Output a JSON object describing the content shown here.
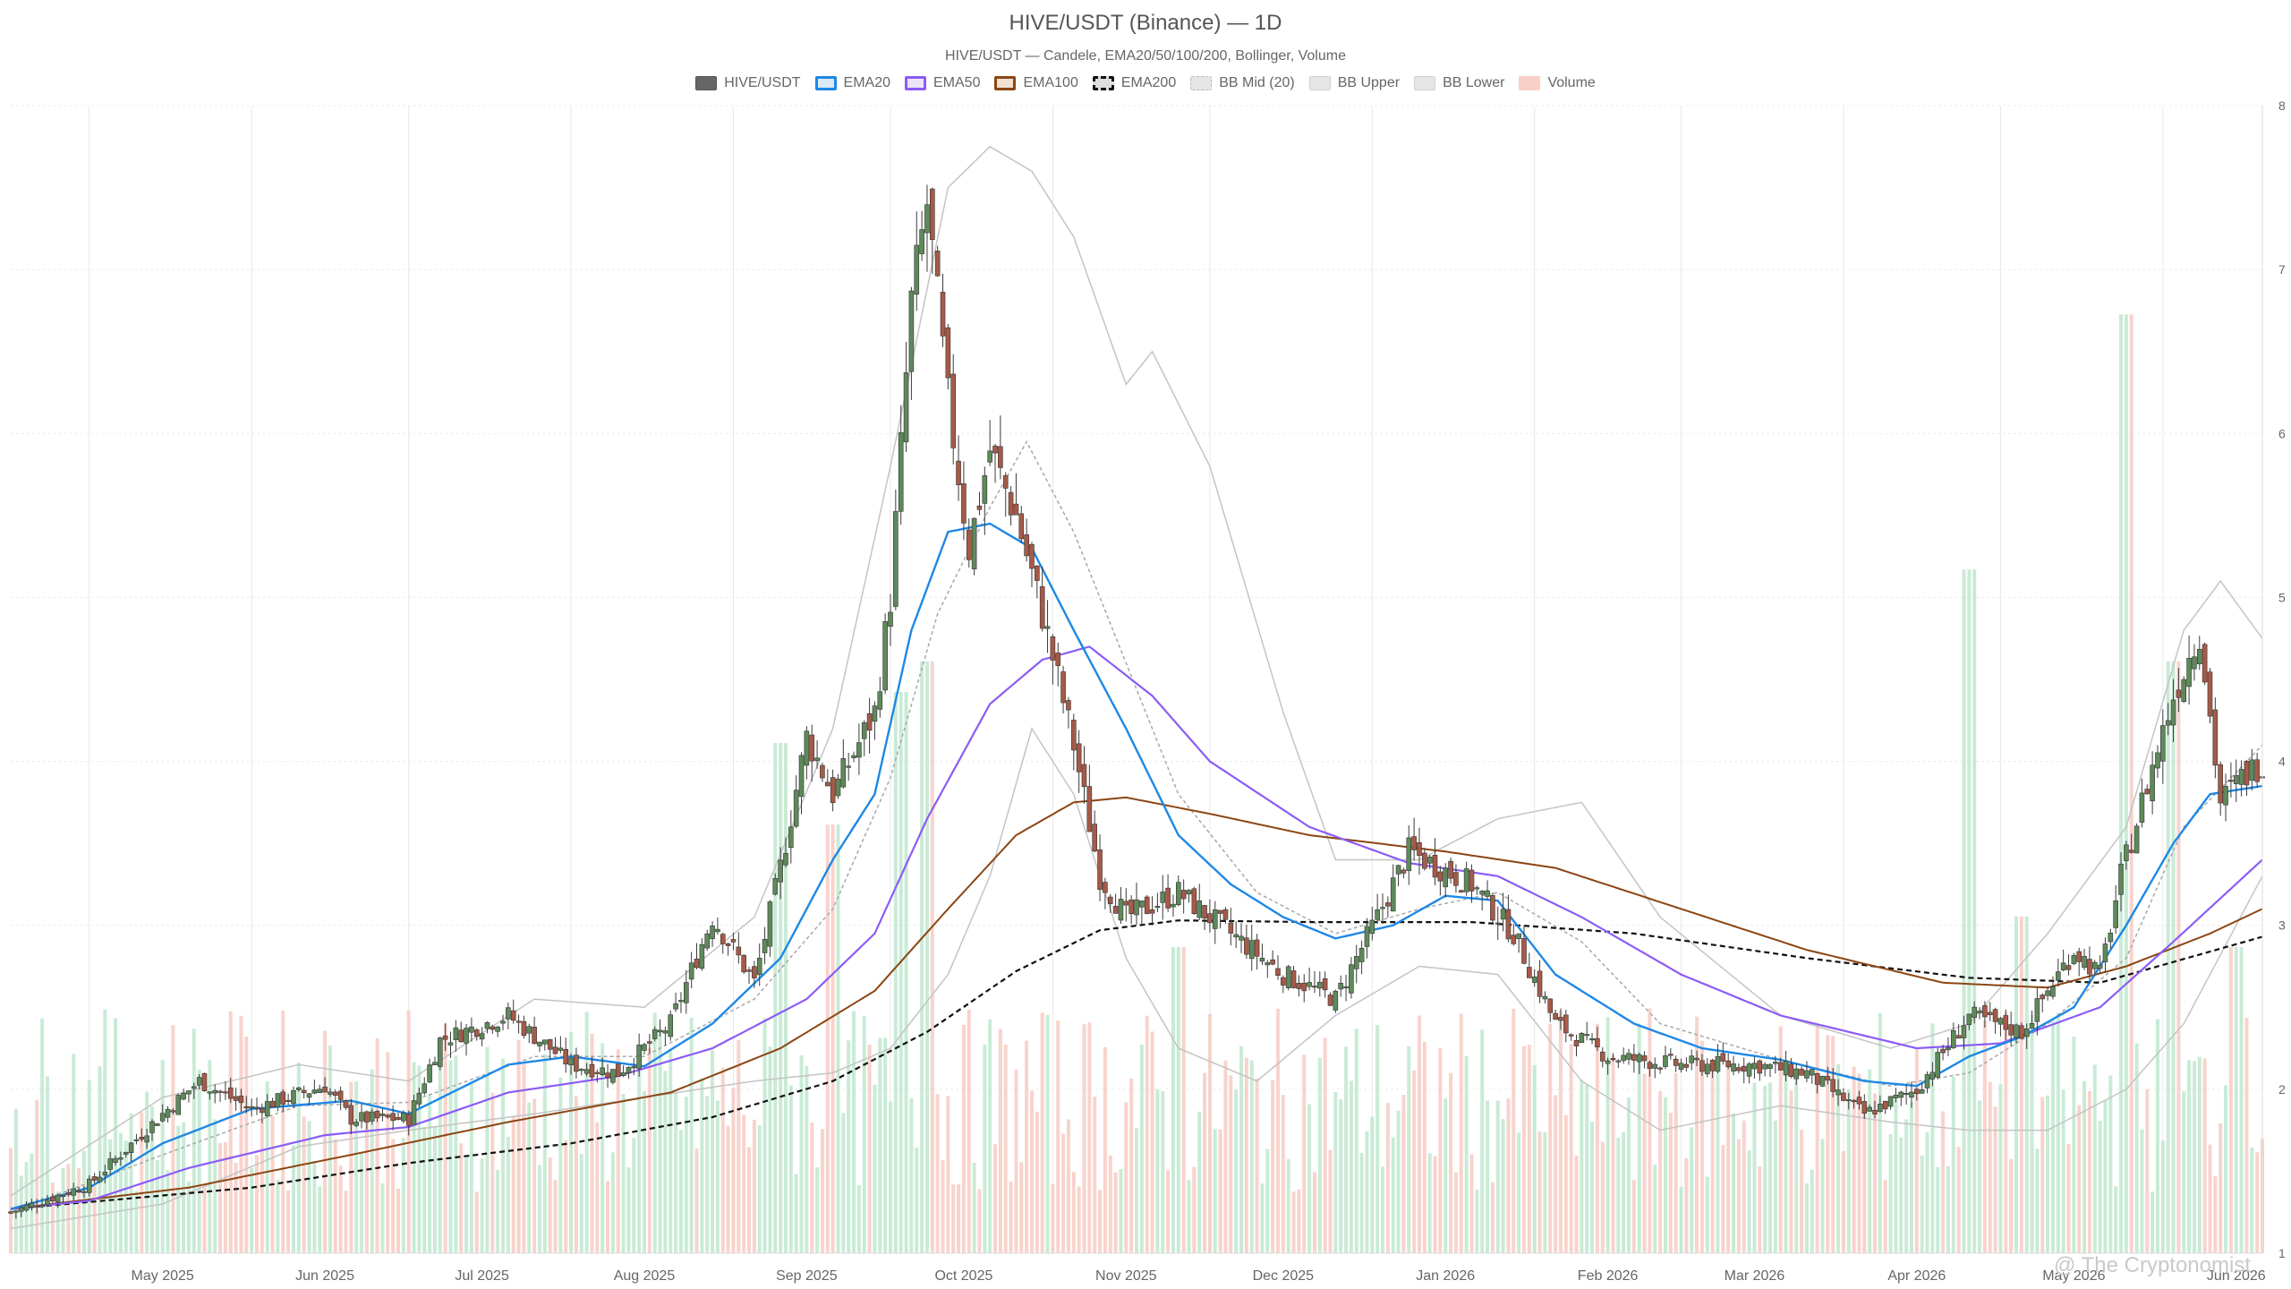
{
  "header": {
    "title": "HIVE/USDT (Binance) — 1D",
    "subtitle": "HIVE/USDT — Candele, EMA20/50/100/200, Bollinger, Volume"
  },
  "legend": [
    {
      "label": "HIVE/USDT",
      "kind": "candle",
      "fill": "#666666",
      "border": "#555555"
    },
    {
      "label": "EMA20",
      "kind": "line",
      "fill": "#dbe8f5",
      "border": "#1e88e5"
    },
    {
      "label": "EMA50",
      "kind": "line",
      "fill": "#ece4fb",
      "border": "#8b5cf6"
    },
    {
      "label": "EMA100",
      "kind": "line",
      "fill": "#f1e0d3",
      "border": "#8b4513"
    },
    {
      "label": "EMA200",
      "kind": "dashed",
      "fill": "#dddddd",
      "border": "#111111"
    },
    {
      "label": "BB Mid (20)",
      "kind": "dashed",
      "fill": "#e6e6e6",
      "border": "#bbbbbb"
    },
    {
      "label": "BB Upper",
      "kind": "band",
      "fill": "#e5e5e5",
      "border": "#d2d2d2"
    },
    {
      "label": "BB Lower",
      "kind": "band",
      "fill": "#e5e5e5",
      "border": "#d2d2d2"
    },
    {
      "label": "Volume",
      "kind": "bar",
      "fill": "#f7cfc7",
      "border": "#f7cfc7"
    }
  ],
  "watermark": "@ The Cryptonomist",
  "chart_data": {
    "type": "candlestick",
    "x_axis": {
      "ticks": [
        "May 2025",
        "Jun 2025",
        "Jul 2025",
        "Aug 2025",
        "Sep 2025",
        "Oct 2025",
        "Nov 2025",
        "Dec 2025",
        "Jan 2026",
        "Feb 2026",
        "Mar 2026",
        "Apr 2026",
        "May 2026",
        "Jun 2026"
      ],
      "range": [
        "2025-04-16",
        "2026-06-20"
      ]
    },
    "y_axis": {
      "ticks": [
        1,
        2,
        3,
        4,
        5,
        6,
        7,
        8
      ],
      "range": [
        1,
        8
      ],
      "position": "right"
    },
    "grid": true,
    "legend_position": "top-center",
    "colors": {
      "up": "#5e8a5a",
      "down": "#a65a48",
      "volume_up": "#bfe8cf",
      "volume_down": "#f7cbc3",
      "ema20": "#1e88e5",
      "ema50": "#8b5cf6",
      "ema100": "#8b4513",
      "ema200": "#111111",
      "bb_mid": "#a8a8a8",
      "bb_band": "#c4c4c4"
    },
    "close_path": [
      [
        "2025-04-16",
        1.25
      ],
      [
        "2025-05-01",
        1.42
      ],
      [
        "2025-05-15",
        1.85
      ],
      [
        "2025-05-22",
        2.05
      ],
      [
        "2025-06-01",
        1.88
      ],
      [
        "2025-06-10",
        1.97
      ],
      [
        "2025-06-15",
        2.02
      ],
      [
        "2025-06-20",
        1.82
      ],
      [
        "2025-07-01",
        1.82
      ],
      [
        "2025-07-07",
        2.3
      ],
      [
        "2025-07-20",
        2.45
      ],
      [
        "2025-08-01",
        2.15
      ],
      [
        "2025-08-10",
        2.1
      ],
      [
        "2025-08-20",
        2.4
      ],
      [
        "2025-08-28",
        3.05
      ],
      [
        "2025-09-05",
        2.65
      ],
      [
        "2025-09-10",
        3.35
      ],
      [
        "2025-09-15",
        4.15
      ],
      [
        "2025-09-20",
        3.8
      ],
      [
        "2025-09-28",
        4.3
      ],
      [
        "2025-10-01",
        5.0
      ],
      [
        "2025-10-05",
        6.8
      ],
      [
        "2025-10-08",
        7.4
      ],
      [
        "2025-10-12",
        6.2
      ],
      [
        "2025-10-16",
        5.3
      ],
      [
        "2025-10-20",
        5.9
      ],
      [
        "2025-10-25",
        5.5
      ],
      [
        "2025-10-30",
        4.9
      ],
      [
        "2025-11-05",
        4.1
      ],
      [
        "2025-11-10",
        3.3
      ],
      [
        "2025-11-15",
        3.05
      ],
      [
        "2025-11-25",
        3.2
      ],
      [
        "2025-12-05",
        2.95
      ],
      [
        "2025-12-15",
        2.7
      ],
      [
        "2025-12-25",
        2.55
      ],
      [
        "2026-01-02",
        3.05
      ],
      [
        "2026-01-08",
        3.45
      ],
      [
        "2026-01-20",
        3.25
      ],
      [
        "2026-01-28",
        2.95
      ],
      [
        "2026-02-05",
        2.4
      ],
      [
        "2026-02-15",
        2.2
      ],
      [
        "2026-03-01",
        2.15
      ],
      [
        "2026-03-15",
        2.15
      ],
      [
        "2026-03-25",
        2.1
      ],
      [
        "2026-04-05",
        1.85
      ],
      [
        "2026-04-15",
        2.0
      ],
      [
        "2026-04-25",
        2.45
      ],
      [
        "2026-05-05",
        2.35
      ],
      [
        "2026-05-15",
        2.85
      ],
      [
        "2026-05-20",
        2.7
      ],
      [
        "2026-05-24",
        3.3
      ],
      [
        "2026-05-28",
        3.75
      ],
      [
        "2026-06-03",
        4.4
      ],
      [
        "2026-06-08",
        4.8
      ],
      [
        "2026-06-12",
        3.75
      ],
      [
        "2026-06-16",
        3.9
      ],
      [
        "2026-06-20",
        4.0
      ]
    ],
    "ema20": [
      [
        "2025-04-16",
        1.27
      ],
      [
        "2025-05-01",
        1.4
      ],
      [
        "2025-05-15",
        1.67
      ],
      [
        "2025-06-01",
        1.88
      ],
      [
        "2025-06-20",
        1.93
      ],
      [
        "2025-07-01",
        1.85
      ],
      [
        "2025-07-20",
        2.15
      ],
      [
        "2025-08-01",
        2.2
      ],
      [
        "2025-08-15",
        2.14
      ],
      [
        "2025-08-28",
        2.4
      ],
      [
        "2025-09-10",
        2.8
      ],
      [
        "2025-09-20",
        3.4
      ],
      [
        "2025-09-28",
        3.8
      ],
      [
        "2025-10-05",
        4.8
      ],
      [
        "2025-10-12",
        5.4
      ],
      [
        "2025-10-20",
        5.45
      ],
      [
        "2025-10-28",
        5.3
      ],
      [
        "2025-11-05",
        4.8
      ],
      [
        "2025-11-15",
        4.2
      ],
      [
        "2025-11-25",
        3.55
      ],
      [
        "2025-12-05",
        3.25
      ],
      [
        "2025-12-15",
        3.05
      ],
      [
        "2025-12-25",
        2.92
      ],
      [
        "2026-01-05",
        3.0
      ],
      [
        "2026-01-15",
        3.18
      ],
      [
        "2026-01-25",
        3.15
      ],
      [
        "2026-02-05",
        2.7
      ],
      [
        "2026-02-20",
        2.4
      ],
      [
        "2026-03-05",
        2.25
      ],
      [
        "2026-03-20",
        2.18
      ],
      [
        "2026-04-05",
        2.05
      ],
      [
        "2026-04-15",
        2.02
      ],
      [
        "2026-04-25",
        2.2
      ],
      [
        "2026-05-05",
        2.32
      ],
      [
        "2026-05-15",
        2.5
      ],
      [
        "2026-05-25",
        3.0
      ],
      [
        "2026-06-03",
        3.5
      ],
      [
        "2026-06-10",
        3.8
      ],
      [
        "2026-06-20",
        3.85
      ]
    ],
    "ema50": [
      [
        "2025-04-16",
        1.27
      ],
      [
        "2025-05-01",
        1.32
      ],
      [
        "2025-05-20",
        1.52
      ],
      [
        "2025-06-15",
        1.72
      ],
      [
        "2025-07-01",
        1.77
      ],
      [
        "2025-07-20",
        1.98
      ],
      [
        "2025-08-10",
        2.08
      ],
      [
        "2025-08-28",
        2.25
      ],
      [
        "2025-09-15",
        2.55
      ],
      [
        "2025-09-28",
        2.95
      ],
      [
        "2025-10-08",
        3.65
      ],
      [
        "2025-10-20",
        4.35
      ],
      [
        "2025-10-30",
        4.62
      ],
      [
        "2025-11-08",
        4.7
      ],
      [
        "2025-11-20",
        4.4
      ],
      [
        "2025-12-01",
        4.0
      ],
      [
        "2025-12-20",
        3.6
      ],
      [
        "2026-01-08",
        3.38
      ],
      [
        "2026-01-25",
        3.3
      ],
      [
        "2026-02-10",
        3.05
      ],
      [
        "2026-03-01",
        2.7
      ],
      [
        "2026-03-20",
        2.45
      ],
      [
        "2026-04-15",
        2.25
      ],
      [
        "2026-05-01",
        2.28
      ],
      [
        "2026-05-20",
        2.5
      ],
      [
        "2026-06-03",
        2.9
      ],
      [
        "2026-06-20",
        3.4
      ]
    ],
    "ema100": [
      [
        "2025-04-16",
        1.27
      ],
      [
        "2025-05-20",
        1.4
      ],
      [
        "2025-06-20",
        1.6
      ],
      [
        "2025-07-20",
        1.8
      ],
      [
        "2025-08-20",
        1.98
      ],
      [
        "2025-09-10",
        2.25
      ],
      [
        "2025-09-28",
        2.6
      ],
      [
        "2025-10-12",
        3.1
      ],
      [
        "2025-10-25",
        3.55
      ],
      [
        "2025-11-05",
        3.75
      ],
      [
        "2025-11-15",
        3.78
      ],
      [
        "2025-12-01",
        3.68
      ],
      [
        "2025-12-20",
        3.55
      ],
      [
        "2026-01-15",
        3.45
      ],
      [
        "2026-02-05",
        3.35
      ],
      [
        "2026-03-01",
        3.1
      ],
      [
        "2026-03-25",
        2.85
      ],
      [
        "2026-04-20",
        2.65
      ],
      [
        "2026-05-10",
        2.62
      ],
      [
        "2026-05-25",
        2.75
      ],
      [
        "2026-06-10",
        2.95
      ],
      [
        "2026-06-20",
        3.1
      ]
    ],
    "ema200": [
      [
        "2025-04-16",
        1.27
      ],
      [
        "2025-06-01",
        1.4
      ],
      [
        "2025-07-01",
        1.55
      ],
      [
        "2025-08-01",
        1.67
      ],
      [
        "2025-08-28",
        1.83
      ],
      [
        "2025-09-20",
        2.05
      ],
      [
        "2025-10-08",
        2.35
      ],
      [
        "2025-10-25",
        2.72
      ],
      [
        "2025-11-10",
        2.97
      ],
      [
        "2025-11-25",
        3.03
      ],
      [
        "2025-12-20",
        3.02
      ],
      [
        "2026-01-20",
        3.02
      ],
      [
        "2026-02-20",
        2.95
      ],
      [
        "2026-03-25",
        2.8
      ],
      [
        "2026-04-25",
        2.68
      ],
      [
        "2026-05-20",
        2.65
      ],
      [
        "2026-06-20",
        2.93
      ]
    ],
    "bb_mid": [
      [
        "2025-04-16",
        1.25
      ],
      [
        "2025-05-15",
        1.6
      ],
      [
        "2025-06-10",
        1.9
      ],
      [
        "2025-07-01",
        1.92
      ],
      [
        "2025-07-25",
        2.2
      ],
      [
        "2025-08-15",
        2.2
      ],
      [
        "2025-09-05",
        2.55
      ],
      [
        "2025-09-20",
        3.1
      ],
      [
        "2025-10-01",
        3.9
      ],
      [
        "2025-10-10",
        4.9
      ],
      [
        "2025-10-20",
        5.55
      ],
      [
        "2025-10-27",
        5.95
      ],
      [
        "2025-11-05",
        5.4
      ],
      [
        "2025-11-15",
        4.6
      ],
      [
        "2025-11-25",
        3.8
      ],
      [
        "2025-12-10",
        3.2
      ],
      [
        "2025-12-25",
        2.95
      ],
      [
        "2026-01-10",
        3.1
      ],
      [
        "2026-01-25",
        3.2
      ],
      [
        "2026-02-10",
        2.9
      ],
      [
        "2026-02-25",
        2.4
      ],
      [
        "2026-03-20",
        2.18
      ],
      [
        "2026-04-10",
        2.02
      ],
      [
        "2026-04-25",
        2.1
      ],
      [
        "2026-05-10",
        2.4
      ],
      [
        "2026-05-25",
        2.8
      ],
      [
        "2026-06-05",
        3.6
      ],
      [
        "2026-06-20",
        4.1
      ]
    ],
    "bb_upper": [
      [
        "2025-04-16",
        1.35
      ],
      [
        "2025-05-15",
        1.95
      ],
      [
        "2025-06-10",
        2.15
      ],
      [
        "2025-07-01",
        2.05
      ],
      [
        "2025-07-25",
        2.55
      ],
      [
        "2025-08-15",
        2.5
      ],
      [
        "2025-09-05",
        3.05
      ],
      [
        "2025-09-20",
        4.2
      ],
      [
        "2025-10-01",
        5.8
      ],
      [
        "2025-10-12",
        7.5
      ],
      [
        "2025-10-20",
        7.75
      ],
      [
        "2025-10-28",
        7.6
      ],
      [
        "2025-11-05",
        7.2
      ],
      [
        "2025-11-15",
        6.3
      ],
      [
        "2025-11-20",
        6.5
      ],
      [
        "2025-12-01",
        5.8
      ],
      [
        "2025-12-15",
        4.3
      ],
      [
        "2025-12-25",
        3.4
      ],
      [
        "2026-01-10",
        3.4
      ],
      [
        "2026-01-25",
        3.65
      ],
      [
        "2026-02-10",
        3.75
      ],
      [
        "2026-02-25",
        3.05
      ],
      [
        "2026-03-20",
        2.45
      ],
      [
        "2026-04-10",
        2.25
      ],
      [
        "2026-04-25",
        2.4
      ],
      [
        "2026-05-10",
        2.95
      ],
      [
        "2026-05-25",
        3.6
      ],
      [
        "2026-06-05",
        4.8
      ],
      [
        "2026-06-12",
        5.1
      ],
      [
        "2026-06-20",
        4.75
      ]
    ],
    "bb_lower": [
      [
        "2025-04-16",
        1.15
      ],
      [
        "2025-05-15",
        1.3
      ],
      [
        "2025-06-10",
        1.65
      ],
      [
        "2025-07-01",
        1.75
      ],
      [
        "2025-07-25",
        1.85
      ],
      [
        "2025-08-15",
        1.95
      ],
      [
        "2025-09-05",
        2.05
      ],
      [
        "2025-09-20",
        2.1
      ],
      [
        "2025-10-01",
        2.25
      ],
      [
        "2025-10-12",
        2.7
      ],
      [
        "2025-10-20",
        3.3
      ],
      [
        "2025-10-28",
        4.2
      ],
      [
        "2025-11-05",
        3.8
      ],
      [
        "2025-11-15",
        2.8
      ],
      [
        "2025-11-25",
        2.25
      ],
      [
        "2025-12-10",
        2.05
      ],
      [
        "2025-12-25",
        2.45
      ],
      [
        "2026-01-10",
        2.75
      ],
      [
        "2026-01-25",
        2.7
      ],
      [
        "2026-02-10",
        2.05
      ],
      [
        "2026-02-25",
        1.75
      ],
      [
        "2026-03-20",
        1.9
      ],
      [
        "2026-04-10",
        1.8
      ],
      [
        "2026-04-25",
        1.75
      ],
      [
        "2026-05-10",
        1.75
      ],
      [
        "2026-05-25",
        2.0
      ],
      [
        "2026-06-05",
        2.4
      ],
      [
        "2026-06-20",
        3.3
      ]
    ],
    "volume_peaks": [
      [
        "2025-09-10",
        0.5
      ],
      [
        "2025-09-20",
        0.42
      ],
      [
        "2025-10-03",
        0.55
      ],
      [
        "2025-10-08",
        0.58
      ],
      [
        "2025-11-25",
        0.3
      ],
      [
        "2026-04-25",
        0.67
      ],
      [
        "2026-05-05",
        0.33
      ],
      [
        "2026-05-25",
        0.92
      ],
      [
        "2026-06-03",
        0.58
      ],
      [
        "2026-06-15",
        0.3
      ]
    ]
  }
}
